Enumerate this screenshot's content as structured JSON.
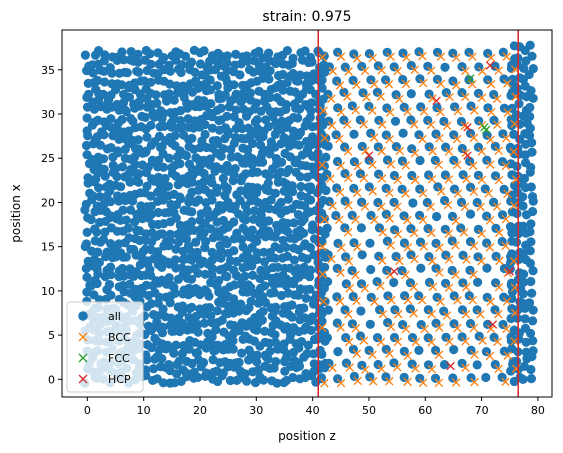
{
  "chart_data": {
    "type": "scatter",
    "title": "strain: 0.975",
    "xlabel": "position z",
    "ylabel": "position x",
    "xlim": [
      -4.5,
      82.5
    ],
    "ylim": [
      -2.0,
      39.5
    ],
    "xticks": [
      0,
      10,
      20,
      30,
      40,
      50,
      60,
      70,
      80
    ],
    "yticks": [
      0,
      5,
      10,
      15,
      20,
      25,
      30,
      35
    ],
    "grid": false,
    "legend_position": "lower-left",
    "all_extent": {
      "z": [
        0,
        79.5
      ],
      "x": [
        0,
        37.5
      ]
    },
    "crystal_region": {
      "z": [
        41,
        76.5
      ]
    },
    "vertical_lines": [
      {
        "x": 41.0,
        "color": "#d62728"
      },
      {
        "x": 76.5,
        "color": "#d62728"
      }
    ],
    "series": [
      {
        "name": "all",
        "marker": "circle",
        "color": "#1f77b4"
      },
      {
        "name": "BCC",
        "marker": "x",
        "color": "#ff7f0e"
      },
      {
        "name": "FCC",
        "marker": "x",
        "color": "#2ca02c",
        "points": [
          [
            68.0,
            34.0
          ],
          [
            70.5,
            28.5
          ],
          [
            70.8,
            28.2
          ]
        ]
      },
      {
        "name": "HCP",
        "marker": "x",
        "color": "#d62728",
        "points": [
          [
            62.0,
            31.5
          ],
          [
            67.5,
            28.5
          ],
          [
            67.5,
            25.3
          ],
          [
            50.0,
            25.3
          ],
          [
            54.5,
            12.2
          ],
          [
            75.0,
            12.2
          ],
          [
            72.0,
            6.2
          ],
          [
            64.5,
            1.5
          ],
          [
            71.5,
            35.5
          ]
        ]
      }
    ]
  }
}
